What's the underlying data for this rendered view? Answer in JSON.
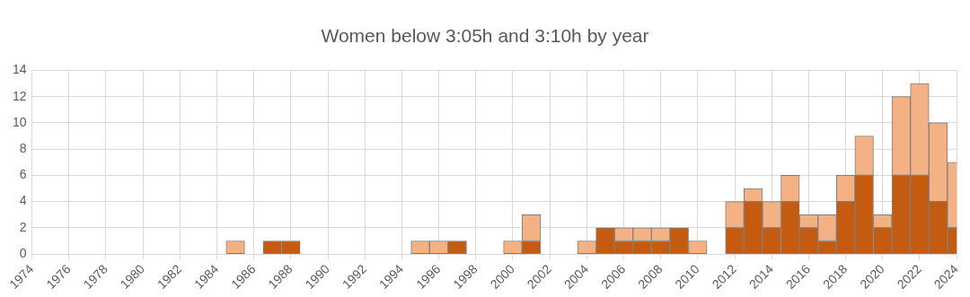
{
  "chart_data": {
    "type": "bar",
    "title": "Women below 3:05h and 3:10h by year",
    "stacked": true,
    "x": [
      1975,
      1976,
      1977,
      1978,
      1979,
      1980,
      1981,
      1982,
      1983,
      1984,
      1985,
      1986,
      1987,
      1988,
      1989,
      1990,
      1991,
      1992,
      1993,
      1994,
      1995,
      1996,
      1997,
      1998,
      1999,
      2000,
      2001,
      2002,
      2003,
      2004,
      2005,
      2006,
      2007,
      2008,
      2009,
      2010,
      2011,
      2012,
      2013,
      2014,
      2015,
      2016,
      2017,
      2018,
      2019,
      2020,
      2021,
      2022,
      2023,
      2024
    ],
    "series": [
      {
        "color": "#c55a11",
        "values": [
          0,
          0,
          0,
          0,
          0,
          0,
          0,
          0,
          0,
          0,
          0,
          0,
          1,
          1,
          0,
          0,
          0,
          0,
          0,
          0,
          0,
          0,
          1,
          0,
          0,
          0,
          1,
          0,
          0,
          0,
          2,
          1,
          1,
          1,
          2,
          0,
          0,
          2,
          4,
          2,
          4,
          2,
          1,
          4,
          6,
          2,
          6,
          6,
          4,
          2
        ]
      },
      {
        "color": "#f4b183",
        "values": [
          0,
          0,
          0,
          0,
          0,
          0,
          0,
          0,
          0,
          0,
          1,
          0,
          0,
          0,
          0,
          0,
          0,
          0,
          0,
          0,
          1,
          1,
          0,
          0,
          0,
          1,
          2,
          0,
          0,
          1,
          0,
          1,
          1,
          1,
          0,
          1,
          0,
          2,
          1,
          2,
          2,
          1,
          2,
          2,
          3,
          1,
          6,
          7,
          6,
          5
        ]
      }
    ],
    "xlim": [
      1974,
      2024
    ],
    "xticks": [
      1974,
      1976,
      1978,
      1980,
      1982,
      1984,
      1986,
      1988,
      1990,
      1992,
      1994,
      1996,
      1998,
      2000,
      2002,
      2004,
      2006,
      2008,
      2010,
      2012,
      2014,
      2016,
      2018,
      2020,
      2022,
      2024
    ],
    "ylim": [
      0,
      14
    ],
    "yticks": [
      0,
      2,
      4,
      6,
      8,
      10,
      12,
      14
    ],
    "grid": true
  }
}
